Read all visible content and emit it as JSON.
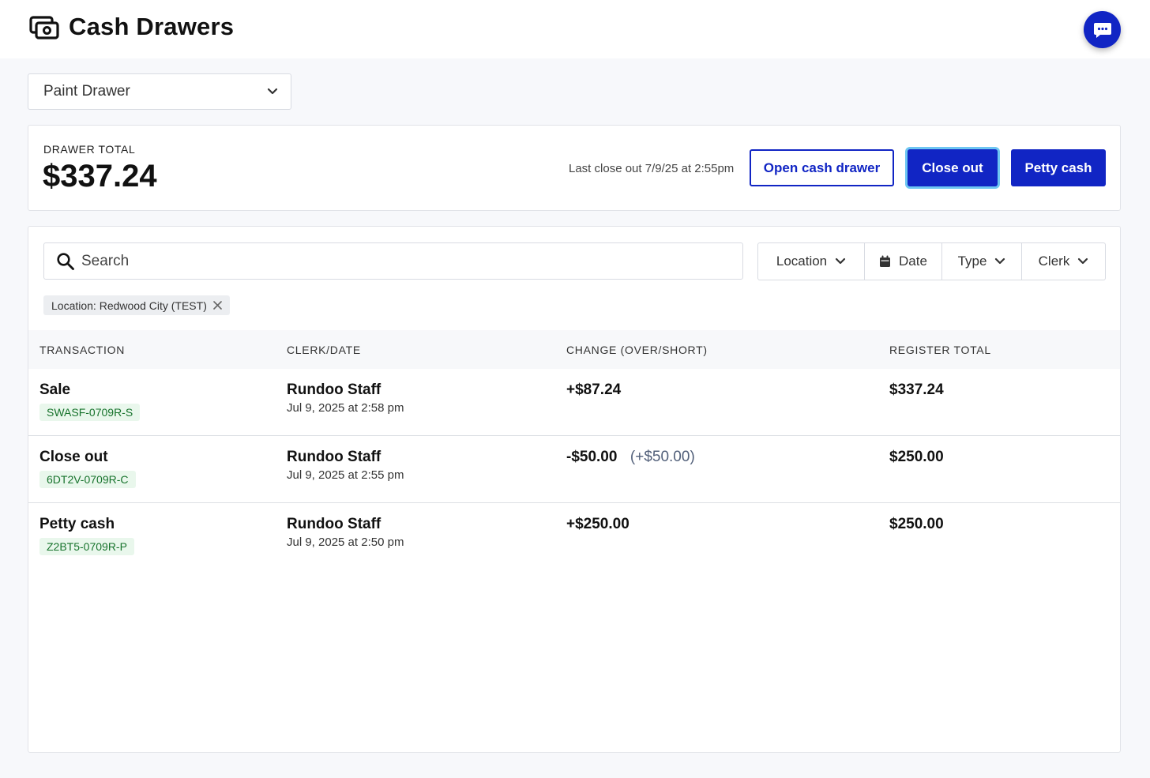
{
  "header": {
    "title": "Cash Drawers",
    "icon": "cash-drawer-icon"
  },
  "drawer_select": {
    "value": "Paint Drawer"
  },
  "summary": {
    "label": "DRAWER TOTAL",
    "total": "$337.24",
    "last_close": "Last close out 7/9/25 at 2:55pm",
    "open_button": "Open cash drawer",
    "close_button": "Close out",
    "petty_button": "Petty cash"
  },
  "search": {
    "placeholder": "Search"
  },
  "filters": {
    "location": "Location",
    "date": "Date",
    "type": "Type",
    "clerk": "Clerk"
  },
  "active_filter": "Location: Redwood City (TEST)",
  "table": {
    "columns": [
      "TRANSACTION",
      "CLERK/DATE",
      "CHANGE (OVER/SHORT)",
      "REGISTER TOTAL"
    ],
    "rows": [
      {
        "type": "Sale",
        "id": "SWASF-0709R-S",
        "clerk": "Rundoo Staff",
        "date": "Jul 9, 2025 at 2:58 pm",
        "change": "+$87.24",
        "over_short": "",
        "total": "$337.24"
      },
      {
        "type": "Close out",
        "id": "6DT2V-0709R-C",
        "clerk": "Rundoo Staff",
        "date": "Jul 9, 2025 at 2:55 pm",
        "change": "-$50.00",
        "over_short": "(+$50.00)",
        "total": "$250.00"
      },
      {
        "type": "Petty cash",
        "id": "Z2BT5-0709R-P",
        "clerk": "Rundoo Staff",
        "date": "Jul 9, 2025 at 2:50 pm",
        "change": "+$250.00",
        "over_short": "",
        "total": "$250.00"
      }
    ]
  },
  "colors": {
    "primary": "#1125c4",
    "focus_ring": "#6ec6f2",
    "id_badge_text": "#17732c",
    "id_badge_bg": "#e9f7ec"
  }
}
